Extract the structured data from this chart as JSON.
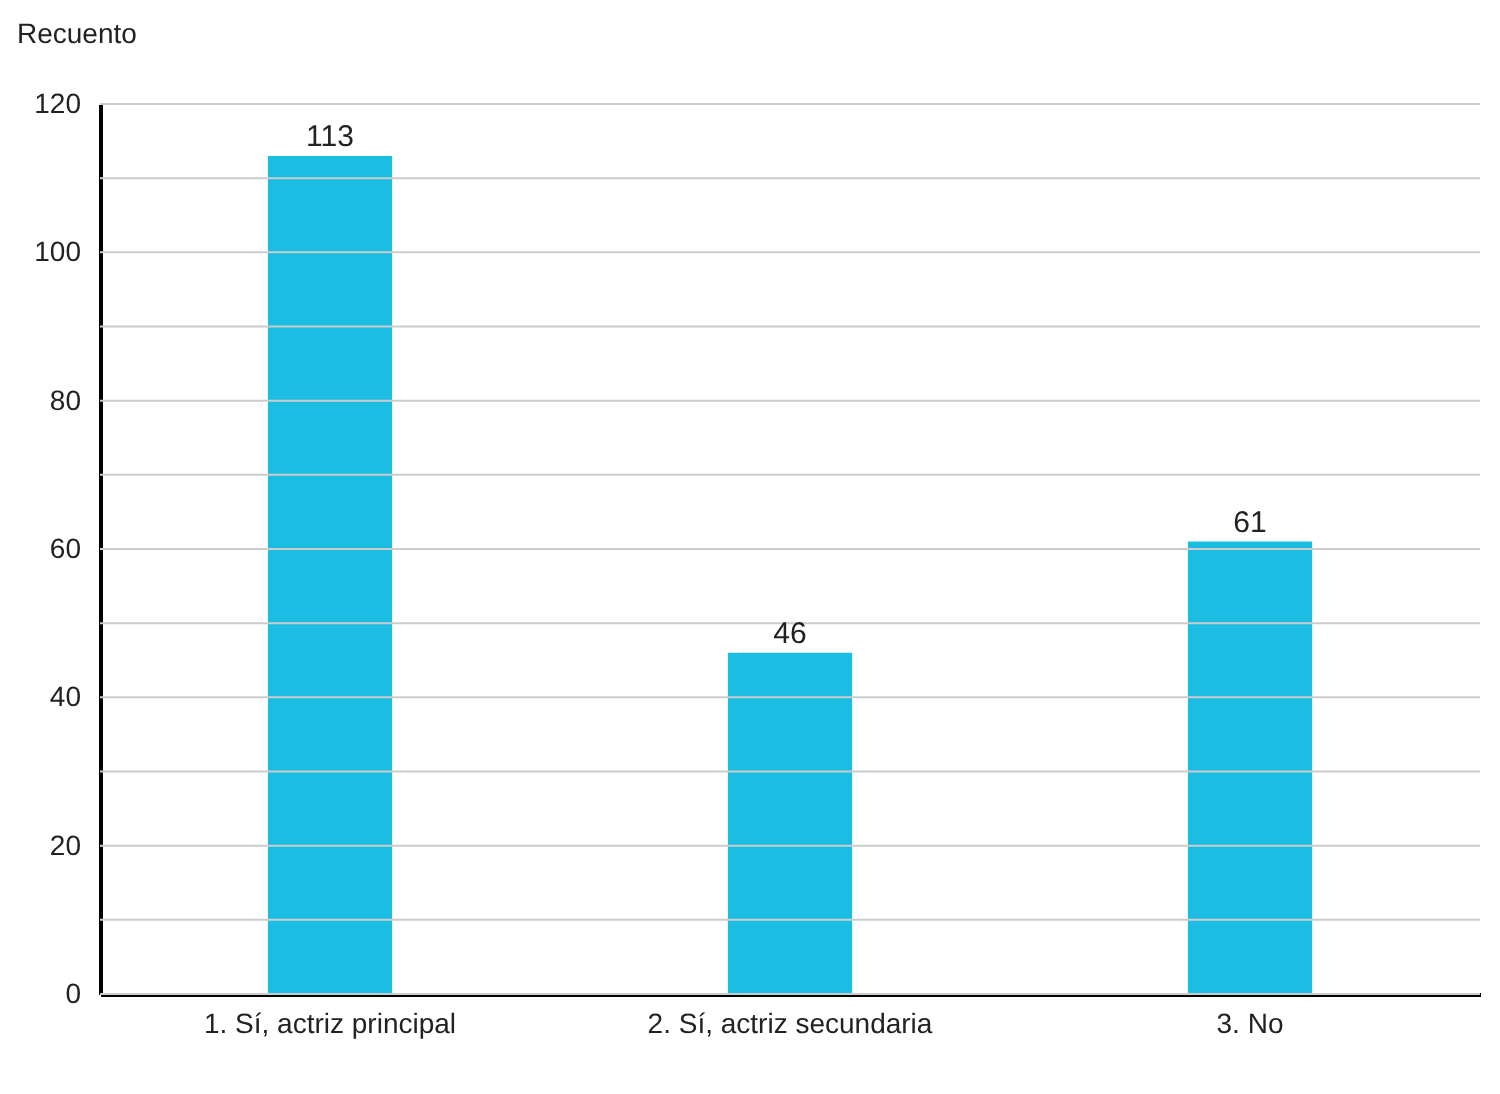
{
  "chart_data": {
    "type": "bar",
    "ylabel": "Recuento",
    "categories": [
      "1. Sí, actriz principal",
      "2. Sí, actriz secundaria",
      "3. No"
    ],
    "values": [
      113,
      46,
      61
    ],
    "color": "#1bbde3",
    "ylim": [
      0,
      120
    ],
    "yticks": [
      0,
      {
        "value": 10,
        "label": null
      },
      20,
      {
        "value": 30,
        "label": null
      },
      40,
      {
        "value": 50,
        "label": null
      },
      60,
      {
        "value": 70,
        "label": null
      },
      80,
      {
        "value": 90,
        "label": null
      },
      100,
      {
        "value": 110,
        "label": null
      },
      120
    ],
    "grid": "y",
    "data_labels": true
  }
}
